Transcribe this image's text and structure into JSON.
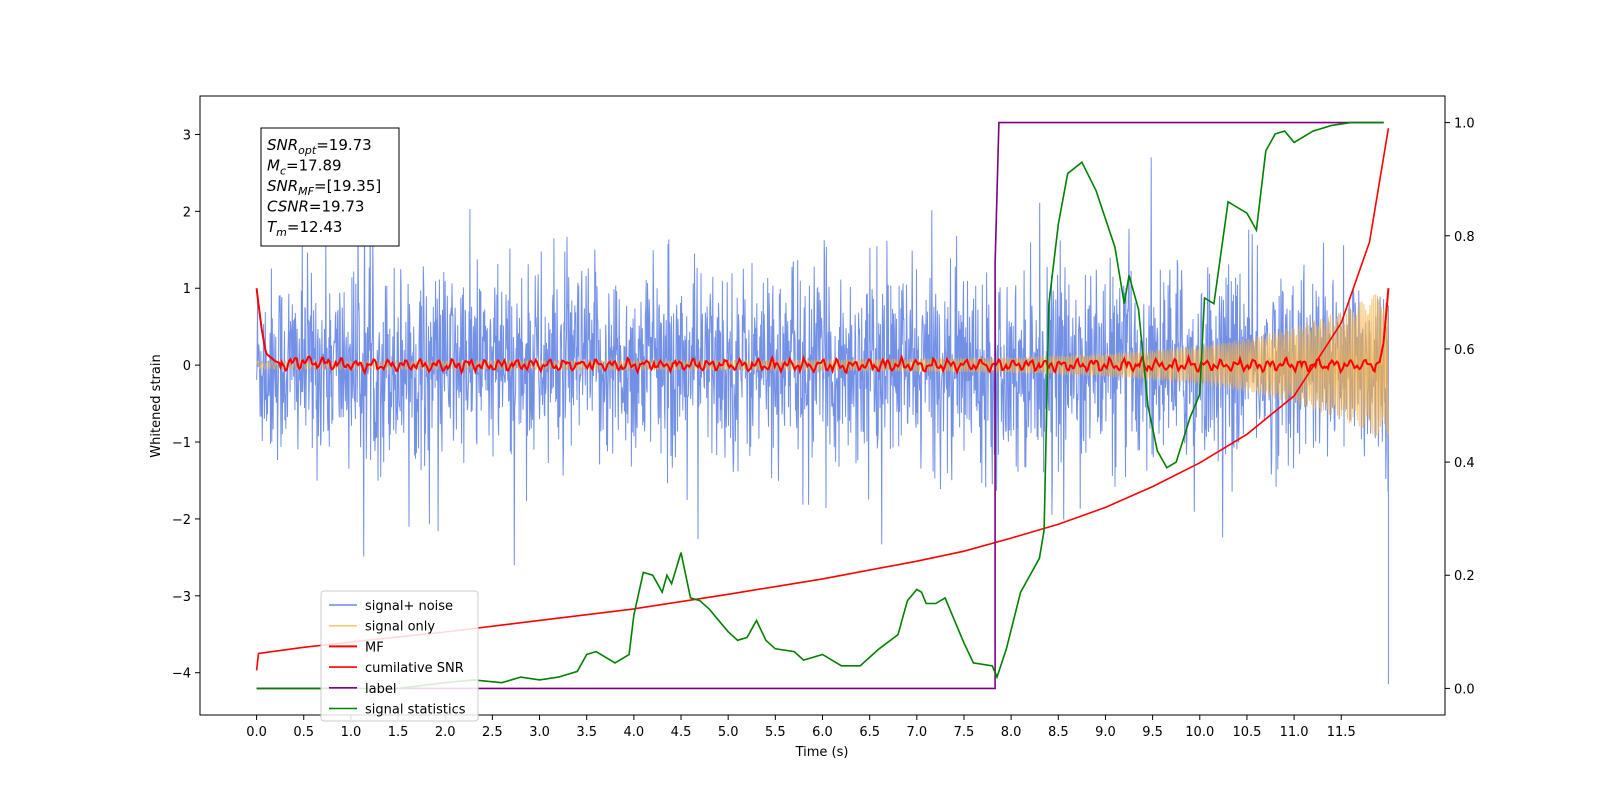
{
  "chart_data": {
    "type": "line",
    "xlabel": "Time (s)",
    "ylabel_left": "Whitened strain",
    "ylabel_right": "",
    "xlim": [
      -0.6,
      12.6
    ],
    "ylim_left": [
      -4.55,
      3.5
    ],
    "ylim_right": [
      -0.047,
      1.047
    ],
    "x_ticks": [
      0.0,
      0.5,
      1.0,
      1.5,
      2.0,
      2.5,
      3.0,
      3.5,
      4.0,
      4.5,
      5.0,
      5.5,
      6.0,
      6.5,
      7.0,
      7.5,
      8.0,
      8.5,
      9.0,
      9.5,
      10.0,
      10.5,
      11.0,
      11.5
    ],
    "x_tick_labels": [
      "0.0",
      "0.5",
      "1.0",
      "1.5",
      "2.0",
      "2.5",
      "3.0",
      "3.5",
      "4.0",
      "4.5",
      "5.0",
      "5.5",
      "6.0",
      "6.5",
      "7.0",
      "7.5",
      "8.0",
      "8.5",
      "9.0",
      "9.5",
      "10.0",
      "10.5",
      "11.0",
      "11.5"
    ],
    "y_left_ticks": [
      -4,
      -3,
      -2,
      -1,
      0,
      1,
      2,
      3
    ],
    "y_left_tick_labels": [
      "−4",
      "−3",
      "−2",
      "−1",
      "0",
      "1",
      "2",
      "3"
    ],
    "y_right_ticks": [
      0.0,
      0.2,
      0.4,
      0.6,
      0.8,
      1.0
    ],
    "y_right_tick_labels": [
      "0.0",
      "0.2",
      "0.4",
      "0.6",
      "0.8",
      "1.0"
    ],
    "grid": false,
    "legend_position": "lower-left",
    "series": [
      {
        "name": "signal+ noise",
        "axis": "left",
        "color": "#6b8ae6",
        "description_values": "noisy whitened strain, roughly uniform amplitude between about -1.6 and 1.6 with spikes to about +/-2.6 across 0-12 s"
      },
      {
        "name": "signal only",
        "axis": "left",
        "color": "#f5b041",
        "envelope": {
          "x": [
            0,
            4,
            6,
            8,
            9,
            10,
            10.5,
            11,
            11.5,
            11.9,
            12.0
          ],
          "amp": [
            0.05,
            0.06,
            0.07,
            0.1,
            0.15,
            0.25,
            0.35,
            0.5,
            0.7,
            0.95,
            0.95
          ]
        }
      },
      {
        "name": "MF",
        "axis": "left",
        "color": "#ff0000",
        "x": [
          0.0,
          0.05,
          0.1,
          0.2,
          0.3,
          0.5,
          1.0,
          11.9,
          11.95,
          12.0
        ],
        "y": [
          1.0,
          0.5,
          0.15,
          0.05,
          0.0,
          0.05,
          0.0,
          0.0,
          0.3,
          1.0
        ]
      },
      {
        "name": "cumilative SNR",
        "axis": "left",
        "color": "#ff0000",
        "x": [
          0.0,
          0.02,
          0.5,
          1.0,
          2.0,
          3.0,
          4.0,
          5.0,
          6.0,
          7.0,
          7.5,
          8.0,
          8.5,
          9.0,
          9.5,
          10.0,
          10.5,
          11.0,
          11.5,
          11.8,
          12.0
        ],
        "y": [
          -3.97,
          -3.75,
          -3.67,
          -3.6,
          -3.47,
          -3.32,
          -3.17,
          -2.98,
          -2.78,
          -2.55,
          -2.42,
          -2.25,
          -2.07,
          -1.85,
          -1.58,
          -1.27,
          -0.9,
          -0.4,
          0.55,
          1.6,
          3.08
        ]
      },
      {
        "name": "label",
        "axis": "right",
        "color": "#7d0080",
        "x": [
          0.0,
          7.83,
          7.83,
          7.87,
          11.95
        ],
        "y": [
          0.0,
          0.0,
          0.75,
          1.0,
          1.0
        ]
      },
      {
        "name": "signal statistics",
        "axis": "right",
        "color": "#008000",
        "x": [
          0.0,
          0.5,
          1.0,
          1.5,
          2.0,
          2.3,
          2.6,
          2.8,
          3.0,
          3.2,
          3.4,
          3.5,
          3.6,
          3.7,
          3.8,
          3.95,
          4.0,
          4.1,
          4.2,
          4.3,
          4.35,
          4.4,
          4.5,
          4.6,
          4.7,
          4.8,
          5.0,
          5.1,
          5.2,
          5.3,
          5.4,
          5.5,
          5.7,
          5.8,
          6.0,
          6.2,
          6.4,
          6.6,
          6.8,
          6.9,
          7.0,
          7.05,
          7.1,
          7.2,
          7.3,
          7.5,
          7.6,
          7.8,
          7.85,
          7.95,
          8.1,
          8.2,
          8.3,
          8.35,
          8.4,
          8.5,
          8.6,
          8.75,
          8.9,
          9.1,
          9.2,
          9.25,
          9.35,
          9.45,
          9.55,
          9.65,
          9.75,
          9.9,
          10.0,
          10.05,
          10.15,
          10.3,
          10.4,
          10.5,
          10.6,
          10.7,
          10.8,
          10.9,
          11.0,
          11.2,
          11.4,
          11.6,
          11.95
        ],
        "y": [
          0.0,
          0.0,
          0.0,
          0.0,
          0.01,
          0.015,
          0.01,
          0.02,
          0.015,
          0.02,
          0.03,
          0.06,
          0.065,
          0.055,
          0.045,
          0.06,
          0.13,
          0.205,
          0.2,
          0.17,
          0.2,
          0.185,
          0.24,
          0.16,
          0.155,
          0.14,
          0.1,
          0.085,
          0.09,
          0.12,
          0.085,
          0.07,
          0.065,
          0.05,
          0.06,
          0.04,
          0.04,
          0.07,
          0.095,
          0.155,
          0.175,
          0.17,
          0.15,
          0.15,
          0.16,
          0.08,
          0.045,
          0.04,
          0.02,
          0.07,
          0.17,
          0.2,
          0.23,
          0.28,
          0.68,
          0.82,
          0.91,
          0.93,
          0.88,
          0.78,
          0.68,
          0.73,
          0.67,
          0.5,
          0.42,
          0.39,
          0.4,
          0.48,
          0.52,
          0.69,
          0.68,
          0.86,
          0.85,
          0.84,
          0.81,
          0.95,
          0.98,
          0.985,
          0.965,
          0.985,
          0.995,
          1.0,
          1.0
        ]
      }
    ],
    "legend": [
      "signal+ noise",
      "signal only",
      "MF",
      "cumilative SNR",
      "label",
      "signal statistics"
    ],
    "annotation": {
      "lines": [
        {
          "base": "SNR",
          "sub": "opt",
          "value": "=19.73"
        },
        {
          "base": "M",
          "sub": "c",
          "value": "=17.89"
        },
        {
          "base": "SNR",
          "sub": "MF",
          "value": "=[19.35]"
        },
        {
          "base": "CSNR",
          "sub": "",
          "value": "=19.73"
        },
        {
          "base": "T",
          "sub": "m",
          "value": "=12.43"
        }
      ]
    }
  }
}
